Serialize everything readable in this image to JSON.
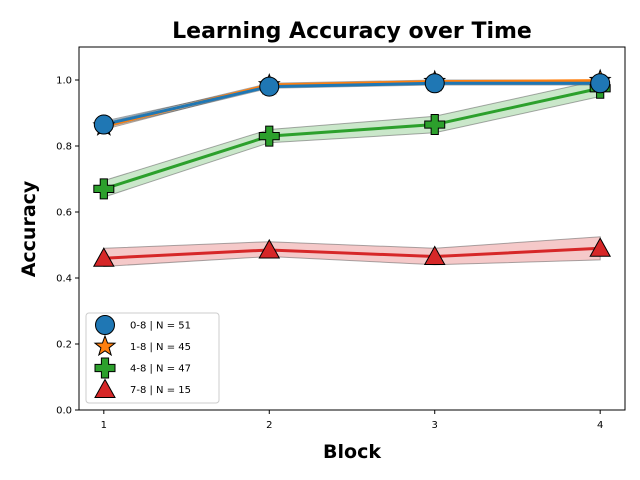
{
  "chart_data": {
    "type": "line",
    "title": "Learning Accuracy over Time",
    "xlabel": "Block",
    "ylabel": "Accuracy",
    "x": [
      1,
      2,
      3,
      4
    ],
    "xlim": [
      0.85,
      4.15
    ],
    "ylim": [
      0.0,
      1.1
    ],
    "xticks": [
      "1",
      "2",
      "3",
      "4"
    ],
    "yticks": [
      "0.0",
      "0.2",
      "0.4",
      "0.6",
      "0.8",
      "1.0"
    ],
    "grid": false,
    "legend_position": "lower-left",
    "series": [
      {
        "name": "0-8 | N = 51",
        "color": "#1f77b4",
        "marker": "circle",
        "values": [
          0.865,
          0.98,
          0.99,
          0.99
        ],
        "ci_lower": [
          0.855,
          0.975,
          0.985,
          0.985
        ],
        "ci_upper": [
          0.875,
          0.985,
          0.995,
          0.995
        ]
      },
      {
        "name": "1-8 | N = 45",
        "color": "#ff7f0e",
        "marker": "star",
        "values": [
          0.86,
          0.985,
          0.995,
          0.998
        ],
        "ci_lower": [
          0.85,
          0.98,
          0.99,
          0.995
        ],
        "ci_upper": [
          0.87,
          0.99,
          1.0,
          1.0
        ]
      },
      {
        "name": "4-8 | N = 47",
        "color": "#2ca02c",
        "marker": "plus",
        "values": [
          0.67,
          0.83,
          0.865,
          0.975
        ],
        "ci_lower": [
          0.645,
          0.81,
          0.84,
          0.95
        ],
        "ci_upper": [
          0.695,
          0.85,
          0.89,
          1.0
        ]
      },
      {
        "name": "7-8 | N = 15",
        "color": "#d62728",
        "marker": "triangle",
        "values": [
          0.46,
          0.485,
          0.465,
          0.49
        ],
        "ci_lower": [
          0.435,
          0.465,
          0.44,
          0.455
        ],
        "ci_upper": [
          0.49,
          0.51,
          0.49,
          0.525
        ]
      }
    ]
  }
}
